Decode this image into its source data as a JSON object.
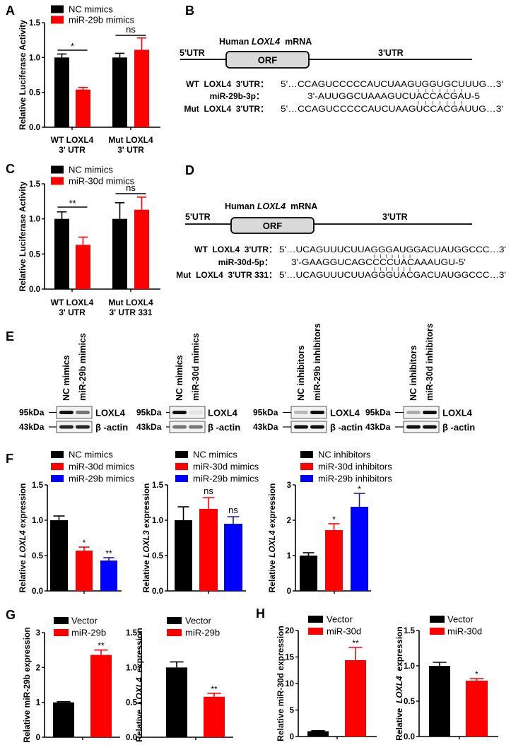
{
  "colors": {
    "nc": "#000000",
    "red": "#ff0000",
    "blue": "#0000ff",
    "orf_fill": "#d9d9d9"
  },
  "chart_data": [
    {
      "panel": "A",
      "type": "bar",
      "ylabel": [
        {
          "text": "Relative Luciferase Activity"
        }
      ],
      "ylim": [
        0,
        1.5
      ],
      "yticks": [
        "0.0",
        "0.5",
        "1.0",
        "1.5"
      ],
      "categories": [
        [
          "WT LOXL4",
          "3' UTR"
        ],
        [
          "Mut LOXL4",
          "3' UTR"
        ]
      ],
      "series": [
        {
          "name": "NC mimics",
          "color": "#000000",
          "values": [
            1.0,
            1.0
          ],
          "errors": [
            0.05,
            0.06
          ]
        },
        {
          "name": "miR-29b mimics",
          "color": "#ff0000",
          "values": [
            0.54,
            1.11
          ],
          "errors": [
            0.03,
            0.17
          ]
        }
      ],
      "annotations": [
        {
          "label": "*",
          "group": 0
        },
        {
          "label": "ns",
          "group": 1
        }
      ]
    },
    {
      "panel": "C",
      "type": "bar",
      "ylabel": [
        {
          "text": "Relative Luciferase Activity"
        }
      ],
      "ylim": [
        0,
        1.5
      ],
      "yticks": [
        "0.0",
        "0.5",
        "1.0",
        "1.5"
      ],
      "categories": [
        [
          "WT LOXL4",
          "3' UTR"
        ],
        [
          "Mut LOXL4",
          "3' UTR 331"
        ]
      ],
      "series": [
        {
          "name": "NC mimics",
          "color": "#000000",
          "values": [
            1.0,
            1.0
          ],
          "errors": [
            0.1,
            0.23
          ]
        },
        {
          "name": "miR-30d mimics",
          "color": "#ff0000",
          "values": [
            0.63,
            1.13
          ],
          "errors": [
            0.11,
            0.18
          ]
        }
      ],
      "annotations": [
        {
          "label": "**",
          "group": 0
        },
        {
          "label": "ns",
          "group": 1
        }
      ]
    },
    {
      "panel": "F",
      "type": "bar",
      "ylabel": [
        {
          "text": "Relative "
        },
        {
          "text": "LOXL4",
          "italic": true
        },
        {
          "text": " expression"
        }
      ],
      "ylim": [
        0,
        1.5
      ],
      "yticks": [
        "0.0",
        "0.5",
        "1.0",
        "1.5"
      ],
      "categories": [
        [
          ""
        ]
      ],
      "series": [
        {
          "name": "NC mimics",
          "color": "#000000",
          "values": [
            1.0
          ],
          "errors": [
            0.06
          ]
        },
        {
          "name": "miR-30d mimics",
          "color": "#ff0000",
          "values": [
            0.57
          ],
          "errors": [
            0.05
          ]
        },
        {
          "name": "miR-29b mimics",
          "color": "#0000ff",
          "values": [
            0.43
          ],
          "errors": [
            0.04
          ]
        }
      ],
      "annotations": [
        {
          "label": "*",
          "bar": 1
        },
        {
          "label": "**",
          "bar": 2
        }
      ]
    },
    {
      "panel": "",
      "type": "bar",
      "ylabel": [
        {
          "text": "Relative "
        },
        {
          "text": "LOXL3",
          "italic": true
        },
        {
          "text": " expression"
        }
      ],
      "ylim": [
        0,
        1.5
      ],
      "yticks": [
        "0.0",
        "0.5",
        "1.0",
        "1.5"
      ],
      "categories": [
        [
          ""
        ]
      ],
      "series": [
        {
          "name": "NC mimics",
          "color": "#000000",
          "values": [
            1.0
          ],
          "errors": [
            0.19
          ]
        },
        {
          "name": "miR-30d mimics",
          "color": "#ff0000",
          "values": [
            1.16
          ],
          "errors": [
            0.16
          ]
        },
        {
          "name": "miR-29b mimics",
          "color": "#0000ff",
          "values": [
            0.95
          ],
          "errors": [
            0.1
          ]
        }
      ],
      "annotations": [
        {
          "label": "ns",
          "bar": 1
        },
        {
          "label": "ns",
          "bar": 2
        }
      ]
    },
    {
      "panel": "",
      "type": "bar",
      "ylabel": [
        {
          "text": "Relative "
        },
        {
          "text": "LOXL4",
          "italic": true
        },
        {
          "text": " expression"
        }
      ],
      "ylim": [
        0,
        3
      ],
      "yticks": [
        "0",
        "1",
        "2",
        "3"
      ],
      "categories": [
        [
          ""
        ]
      ],
      "series": [
        {
          "name": "NC inhibitors",
          "color": "#000000",
          "values": [
            1.0
          ],
          "errors": [
            0.08
          ]
        },
        {
          "name": "miR-30d inhibitors",
          "color": "#ff0000",
          "values": [
            1.72
          ],
          "errors": [
            0.18
          ]
        },
        {
          "name": "miR-29b inhibitors",
          "color": "#0000ff",
          "values": [
            2.38
          ],
          "errors": [
            0.38
          ]
        }
      ],
      "annotations": [
        {
          "label": "*",
          "bar": 1
        },
        {
          "label": "*",
          "bar": 2
        }
      ]
    },
    {
      "panel": "G",
      "type": "bar",
      "ylabel": [
        {
          "text": "Relative miR-29b expression"
        }
      ],
      "ylim": [
        0,
        3
      ],
      "yticks": [
        "0",
        "1",
        "2",
        "3"
      ],
      "categories": [
        [
          ""
        ]
      ],
      "series": [
        {
          "name": "Vector",
          "color": "#000000",
          "values": [
            1.0
          ],
          "errors": [
            0.02
          ]
        },
        {
          "name": "miR-29b",
          "color": "#ff0000",
          "values": [
            2.36
          ],
          "errors": [
            0.14
          ]
        }
      ],
      "annotations": [
        {
          "label": "**",
          "bar": 1
        }
      ]
    },
    {
      "panel": "",
      "type": "bar",
      "ylabel": [
        {
          "text": "Relative  "
        },
        {
          "text": "LOXL4",
          "italic": true
        },
        {
          "text": "  expression"
        }
      ],
      "ylim": [
        0,
        1.5
      ],
      "yticks": [
        "0.0",
        "0.5",
        "1.0",
        "1.5"
      ],
      "categories": [
        [
          ""
        ]
      ],
      "series": [
        {
          "name": "Vector",
          "color": "#000000",
          "values": [
            1.0
          ],
          "errors": [
            0.08
          ]
        },
        {
          "name": "miR-29b",
          "color": "#ff0000",
          "values": [
            0.58
          ],
          "errors": [
            0.05
          ]
        }
      ],
      "annotations": [
        {
          "label": "**",
          "bar": 1
        }
      ]
    },
    {
      "panel": "H",
      "type": "bar",
      "ylabel": [
        {
          "text": "Relative miR-30d expression"
        }
      ],
      "ylim": [
        0,
        20
      ],
      "yticks": [
        "0",
        "5",
        "10",
        "15",
        "20"
      ],
      "categories": [
        [
          ""
        ]
      ],
      "series": [
        {
          "name": "Vector",
          "color": "#000000",
          "values": [
            1.0
          ],
          "errors": [
            0.1
          ]
        },
        {
          "name": "miR-30d",
          "color": "#ff0000",
          "values": [
            14.4
          ],
          "errors": [
            2.4
          ]
        }
      ],
      "annotations": [
        {
          "label": "**",
          "bar": 1
        }
      ]
    },
    {
      "panel": "",
      "type": "bar",
      "ylabel": [
        {
          "text": "Relative  "
        },
        {
          "text": "LOXL4",
          "italic": true
        },
        {
          "text": "  expression"
        }
      ],
      "ylim": [
        0,
        1.5
      ],
      "yticks": [
        "0.0",
        "0.5",
        "1.0",
        "1.5"
      ],
      "categories": [
        [
          ""
        ]
      ],
      "series": [
        {
          "name": "Vector",
          "color": "#000000",
          "values": [
            1.0
          ],
          "errors": [
            0.05
          ]
        },
        {
          "name": "miR-30d",
          "color": "#ff0000",
          "values": [
            0.79
          ],
          "errors": [
            0.03
          ]
        }
      ],
      "annotations": [
        {
          "label": "*",
          "bar": 1
        }
      ]
    }
  ],
  "diagrams": [
    {
      "panel": "B",
      "title_pre": "Human ",
      "title_gene": "LOXL4",
      "title_post": "  mRNA",
      "utr5": "5'UTR",
      "orf": "ORF",
      "utr3": "3'UTR",
      "rows": [
        {
          "label": "WT  LOXL4  3'UTR：",
          "seq": "5'…CCAGUCCCCCAUCUAAGUGGUGCUUUG…3'"
        },
        {
          "label": "miR-29b-3p：",
          "seq": "3'-AUUGGCUAAAGUCUACCACGAU-5"
        },
        {
          "label": "Mut  LOXL4  3'UTR：",
          "seq": "5'…CCAGUCCCCCAUCUAAGUCCACGAUUG…3'"
        }
      ]
    },
    {
      "panel": "D",
      "title_pre": "Human ",
      "title_gene": "LOXL4",
      "title_post": "  mRNA",
      "utr5": "5'UTR",
      "orf": "ORF",
      "utr3": "3'UTR",
      "rows": [
        {
          "label": "WT  LOXL4  3'UTR：",
          "seq": "5'…UCAGUUUCUUAGGGAUGGACUAUGGCCC…3'"
        },
        {
          "label": "miR-30d-5p：",
          "seq": "3'-GAAGGUCAGCCCCUACAAAUGU-5'"
        },
        {
          "label": "Mut  LOXL4  3'UTR 331：",
          "seq": "5'…UCAGUUUCUUAGGGUACGACUAUGGCCC…3'"
        }
      ]
    }
  ],
  "western_blots": {
    "panel": "E",
    "blots": [
      {
        "lanes": [
          "NC mimics",
          "miR-29b mimics"
        ],
        "rows": [
          {
            "marker": "95kDa",
            "protein": "LOXL4"
          },
          {
            "marker": "43kDa",
            "protein": "β -actin"
          }
        ]
      },
      {
        "lanes": [
          "NC mimics",
          "miR-30d mimics"
        ],
        "rows": [
          {
            "marker": "95kDa",
            "protein": "LOXL4"
          },
          {
            "marker": "43kDa",
            "protein": "β -actin"
          }
        ]
      },
      {
        "lanes": [
          "NC inhibitors",
          "miR-29b inhibitors"
        ],
        "rows": [
          {
            "marker": "95kDa",
            "protein": "LOXL4"
          },
          {
            "marker": "43kDa",
            "protein": "β -actin"
          }
        ]
      },
      {
        "lanes": [
          "NC inhibitors",
          "miR-30d inhibitors"
        ],
        "rows": [
          {
            "marker": "95kDa",
            "protein": "LOXL4"
          },
          {
            "marker": "43kDa",
            "protein": "β -actin"
          }
        ]
      }
    ]
  }
}
